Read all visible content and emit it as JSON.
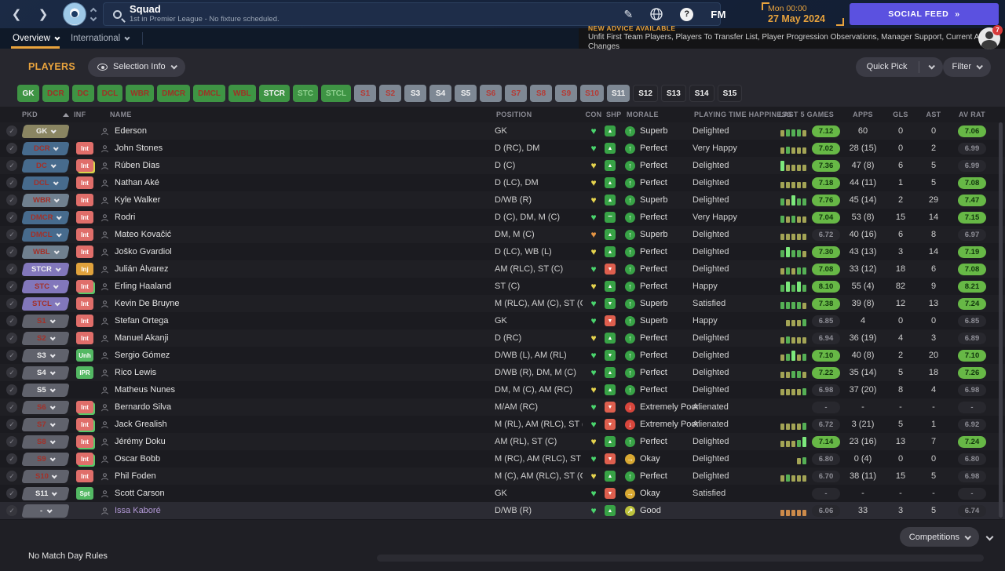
{
  "topbar": {
    "title": "Squad",
    "subtitle": "1st in Premier League - No fixture scheduled.",
    "fm_logo": "FM",
    "date_line1": "Mon 00:00",
    "date_line2": "27 May 2024",
    "social_feed_label": "SOCIAL FEED",
    "social_feed_arrow": "»"
  },
  "tabs": {
    "overview": "Overview",
    "international": "International"
  },
  "advice": {
    "heading": "NEW ADVICE AVAILABLE",
    "items": "Unfit First Team Players, Players To Transfer List, Player Progression Observations, Manager Support, Current Ability Changes",
    "badge_count": "7"
  },
  "players_toolbar": {
    "title": "PLAYERS",
    "selection_info": "Selection Info",
    "quick_pick": "Quick Pick",
    "filter": "Filter"
  },
  "position_buttons": [
    {
      "label": "GK",
      "bg": "green",
      "text": "white"
    },
    {
      "label": "DCR",
      "bg": "green",
      "text": "red"
    },
    {
      "label": "DC",
      "bg": "green",
      "text": "red"
    },
    {
      "label": "DCL",
      "bg": "green",
      "text": "red"
    },
    {
      "label": "WBR",
      "bg": "green",
      "text": "red"
    },
    {
      "label": "DMCR",
      "bg": "green",
      "text": "red"
    },
    {
      "label": "DMCL",
      "bg": "green",
      "text": "red"
    },
    {
      "label": "WBL",
      "bg": "green",
      "text": "red"
    },
    {
      "label": "STCR",
      "bg": "green",
      "text": "white"
    },
    {
      "label": "STC",
      "bg": "green",
      "text": "ltgreen"
    },
    {
      "label": "STCL",
      "bg": "green",
      "text": "ltgreen"
    },
    {
      "label": "S1",
      "bg": "grey",
      "text": "redg"
    },
    {
      "label": "S2",
      "bg": "grey",
      "text": "redg"
    },
    {
      "label": "S3",
      "bg": "grey",
      "text": "white"
    },
    {
      "label": "S4",
      "bg": "grey",
      "text": "white"
    },
    {
      "label": "S5",
      "bg": "grey",
      "text": "white"
    },
    {
      "label": "S6",
      "bg": "grey",
      "text": "redg"
    },
    {
      "label": "S7",
      "bg": "grey",
      "text": "redg"
    },
    {
      "label": "S8",
      "bg": "grey",
      "text": "redg"
    },
    {
      "label": "S9",
      "bg": "grey",
      "text": "redg"
    },
    {
      "label": "S10",
      "bg": "grey",
      "text": "redg"
    },
    {
      "label": "S11",
      "bg": "grey",
      "text": "white"
    },
    {
      "label": "S12",
      "bg": "dark",
      "text": "white"
    },
    {
      "label": "S13",
      "bg": "dark",
      "text": "white"
    },
    {
      "label": "S14",
      "bg": "dark",
      "text": "white"
    },
    {
      "label": "S15",
      "bg": "dark",
      "text": "white"
    }
  ],
  "colors": {
    "accent_orange": "#e8a33d",
    "social_purple": "#5b51e0",
    "rating_green": "#67b846",
    "heart": {
      "green": "#4ad66e",
      "yellow": "#e6d44e",
      "orange": "#e69544"
    }
  },
  "table": {
    "headers": {
      "pkd": "PKD",
      "inf": "INF",
      "name": "NAME",
      "position": "POSITION",
      "con": "CON",
      "shp": "SHP",
      "morale": "MORALE",
      "playing": "PLAYING TIME HAPPINESS",
      "last5": "LAST 5 GAMES",
      "apps": "APPS",
      "gls": "GLS",
      "ast": "AST",
      "avrat": "AV RAT"
    },
    "rows": [
      {
        "pkd": "GK",
        "pkd_color": "khaki",
        "pkd_text": "white",
        "inf": null,
        "name": "Ederson",
        "position": "GK",
        "con": "green",
        "shp": "green-up",
        "morale_icon": "green-up",
        "morale": "Superb",
        "playing": "Delighted",
        "last5": [
          "o",
          "g",
          "g",
          "g",
          "o"
        ],
        "rating": "7.12",
        "rating_badge": true,
        "apps": "60",
        "gls": "0",
        "ast": "0",
        "avrat": "7.06",
        "avrat_badge": true
      },
      {
        "pkd": "DCR",
        "pkd_color": "blue",
        "pkd_text": "red",
        "inf": "Int",
        "inf_color": "red",
        "name": "John Stones",
        "position": "D (RC), DM",
        "con": "green",
        "shp": "green-up",
        "morale_icon": "green-up",
        "morale": "Perfect",
        "playing": "Very Happy",
        "last5": [
          "o",
          "g",
          "o",
          "o",
          "o"
        ],
        "rating": "7.02",
        "rating_badge": true,
        "apps": "28 (15)",
        "gls": "0",
        "ast": "2",
        "avrat": "6.99",
        "avrat_badge": false
      },
      {
        "pkd": "DC",
        "pkd_color": "blue",
        "pkd_text": "red",
        "inf": "Int",
        "inf_color": "red",
        "inf_stack": "#d8d44a",
        "name": "Rúben Dias",
        "position": "D (C)",
        "con": "yellow",
        "shp": "green-up",
        "morale_icon": "green-up",
        "morale": "Perfect",
        "playing": "Delighted",
        "last5": [
          "b",
          "o",
          "o",
          "o",
          "o"
        ],
        "rating": "7.36",
        "rating_badge": true,
        "apps": "47 (8)",
        "gls": "6",
        "ast": "5",
        "avrat": "6.99",
        "avrat_badge": false
      },
      {
        "pkd": "DCL",
        "pkd_color": "blue",
        "pkd_text": "red",
        "inf": "Int",
        "inf_color": "red",
        "name": "Nathan Aké",
        "position": "D (LC), DM",
        "con": "yellow",
        "shp": "green-up",
        "morale_icon": "green-up",
        "morale": "Perfect",
        "playing": "Delighted",
        "last5": [
          "o",
          "o",
          "o",
          "o",
          "o"
        ],
        "rating": "7.18",
        "rating_badge": true,
        "apps": "44 (11)",
        "gls": "1",
        "ast": "5",
        "avrat": "7.08",
        "avrat_badge": true
      },
      {
        "pkd": "WBR",
        "pkd_color": "bluegrey",
        "pkd_text": "red",
        "inf": "Int",
        "inf_color": "red",
        "name": "Kyle Walker",
        "position": "D/WB (R)",
        "con": "yellow",
        "shp": "green-up",
        "morale_icon": "green-up",
        "morale": "Superb",
        "playing": "Delighted",
        "last5": [
          "g",
          "o",
          "b",
          "g",
          "g"
        ],
        "rating": "7.76",
        "rating_badge": true,
        "apps": "45 (14)",
        "gls": "2",
        "ast": "29",
        "avrat": "7.47",
        "avrat_badge": true
      },
      {
        "pkd": "DMCR",
        "pkd_color": "blue",
        "pkd_text": "red",
        "inf": "Int",
        "inf_color": "red",
        "name": "Rodri",
        "position": "D (C), DM, M (C)",
        "con": "green",
        "shp": "green-minus",
        "morale_icon": "green-up",
        "morale": "Perfect",
        "playing": "Very Happy",
        "last5": [
          "g",
          "o",
          "g",
          "o",
          "o"
        ],
        "rating": "7.04",
        "rating_badge": true,
        "apps": "53 (8)",
        "gls": "15",
        "ast": "14",
        "avrat": "7.15",
        "avrat_badge": true
      },
      {
        "pkd": "DMCL",
        "pkd_color": "blue",
        "pkd_text": "red",
        "inf": "Int",
        "inf_color": "red",
        "name": "Mateo Kovačić",
        "position": "DM, M (C)",
        "con": "orange",
        "shp": "green-up",
        "morale_icon": "green-up",
        "morale": "Superb",
        "playing": "Delighted",
        "last5": [
          "o",
          "o",
          "o",
          "o",
          "o"
        ],
        "rating": "6.72",
        "rating_badge": false,
        "apps": "40 (16)",
        "gls": "6",
        "ast": "8",
        "avrat": "6.97",
        "avrat_badge": false
      },
      {
        "pkd": "WBL",
        "pkd_color": "bluegrey",
        "pkd_text": "red",
        "inf": "Int",
        "inf_color": "red",
        "name": "Joško Gvardiol",
        "position": "D (LC), WB (L)",
        "con": "yellow",
        "shp": "green-up",
        "morale_icon": "green-up",
        "morale": "Perfect",
        "playing": "Delighted",
        "last5": [
          "g",
          "b",
          "g",
          "g",
          "o"
        ],
        "rating": "7.30",
        "rating_badge": true,
        "apps": "43 (13)",
        "gls": "3",
        "ast": "14",
        "avrat": "7.19",
        "avrat_badge": true
      },
      {
        "pkd": "STCR",
        "pkd_color": "purple",
        "pkd_text": "white",
        "inf": "Inj",
        "inf_color": "amber",
        "name": "Julián Álvarez",
        "position": "AM (RLC), ST (C)",
        "con": "green",
        "shp": "red-down",
        "morale_icon": "green-up",
        "morale": "Perfect",
        "playing": "Delighted",
        "last5": [
          "o",
          "g",
          "o",
          "g",
          "g"
        ],
        "rating": "7.08",
        "rating_badge": true,
        "apps": "33 (12)",
        "gls": "18",
        "ast": "6",
        "avrat": "7.08",
        "avrat_badge": true
      },
      {
        "pkd": "STC",
        "pkd_color": "purple",
        "pkd_text": "red",
        "inf": "Int",
        "inf_color": "red",
        "inf_stack": "#58c868",
        "name": "Erling Haaland",
        "position": "ST (C)",
        "con": "yellow",
        "shp": "green-up",
        "morale_icon": "green-up",
        "morale": "Perfect",
        "playing": "Happy",
        "last5": [
          "g",
          "b",
          "g",
          "b",
          "g"
        ],
        "rating": "8.10",
        "rating_badge": true,
        "apps": "55 (4)",
        "gls": "82",
        "ast": "9",
        "avrat": "8.21",
        "avrat_badge": true
      },
      {
        "pkd": "STCL",
        "pkd_color": "purple",
        "pkd_text": "red",
        "inf": "Int",
        "inf_color": "red",
        "name": "Kevin De Bruyne",
        "position": "M (RLC), AM (C), ST (C)",
        "con": "green",
        "shp": "green-down",
        "morale_icon": "green-up",
        "morale": "Superb",
        "playing": "Satisfied",
        "last5": [
          "g",
          "g",
          "g",
          "g",
          "o"
        ],
        "rating": "7.38",
        "rating_badge": true,
        "apps": "39 (8)",
        "gls": "12",
        "ast": "13",
        "avrat": "7.24",
        "avrat_badge": true
      },
      {
        "pkd": "S1",
        "pkd_color": "grey",
        "pkd_text": "red",
        "inf": "Int",
        "inf_color": "red",
        "name": "Stefan Ortega",
        "position": "GK",
        "con": "green",
        "shp": "red-down",
        "morale_icon": "green-up",
        "morale": "Superb",
        "playing": "Happy",
        "last5": [
          "o",
          "o",
          "o",
          "g"
        ],
        "rating": "6.85",
        "rating_badge": false,
        "apps": "4",
        "gls": "0",
        "ast": "0",
        "avrat": "6.85",
        "avrat_badge": false
      },
      {
        "pkd": "S2",
        "pkd_color": "grey",
        "pkd_text": "red",
        "inf": "Int",
        "inf_color": "red",
        "name": "Manuel Akanji",
        "position": "D (RC)",
        "con": "yellow",
        "shp": "green-up",
        "morale_icon": "green-up",
        "morale": "Perfect",
        "playing": "Delighted",
        "last5": [
          "o",
          "g",
          "o",
          "o",
          "o"
        ],
        "rating": "6.94",
        "rating_badge": false,
        "apps": "36 (19)",
        "gls": "4",
        "ast": "3",
        "avrat": "6.89",
        "avrat_badge": false
      },
      {
        "pkd": "S3",
        "pkd_color": "grey",
        "pkd_text": "white",
        "inf": "Unh",
        "inf_color": "green",
        "name": "Sergio Gómez",
        "position": "D/WB (L), AM (RL)",
        "con": "green",
        "shp": "green-down",
        "morale_icon": "green-up",
        "morale": "Perfect",
        "playing": "Delighted",
        "last5": [
          "o",
          "g",
          "b",
          "o",
          "g"
        ],
        "rating": "7.10",
        "rating_badge": true,
        "apps": "40 (8)",
        "gls": "2",
        "ast": "20",
        "avrat": "7.10",
        "avrat_badge": true
      },
      {
        "pkd": "S4",
        "pkd_color": "grey",
        "pkd_text": "white",
        "inf": "IPR",
        "inf_color": "green",
        "name": "Rico Lewis",
        "position": "D/WB (R), DM, M (C)",
        "con": "green",
        "shp": "green-up",
        "morale_icon": "green-up",
        "morale": "Perfect",
        "playing": "Delighted",
        "last5": [
          "o",
          "o",
          "g",
          "g",
          "o"
        ],
        "rating": "7.22",
        "rating_badge": true,
        "apps": "35 (14)",
        "gls": "5",
        "ast": "18",
        "avrat": "7.26",
        "avrat_badge": true
      },
      {
        "pkd": "S5",
        "pkd_color": "grey",
        "pkd_text": "white",
        "inf": null,
        "name": "Matheus Nunes",
        "position": "DM, M (C), AM (RC)",
        "con": "yellow",
        "shp": "green-up",
        "morale_icon": "green-up",
        "morale": "Perfect",
        "playing": "Delighted",
        "last5": [
          "o",
          "o",
          "o",
          "o",
          "g"
        ],
        "rating": "6.98",
        "rating_badge": false,
        "apps": "37 (20)",
        "gls": "8",
        "ast": "4",
        "avrat": "6.98",
        "avrat_badge": false
      },
      {
        "pkd": "S6",
        "pkd_color": "grey",
        "pkd_text": "red",
        "inf": "Int",
        "inf_color": "red",
        "inf_stack": "#58c868",
        "name": "Bernardo Silva",
        "position": "M/AM (RC)",
        "con": "green",
        "shp": "red-down",
        "morale_icon": "red-down",
        "morale": "Extremely Poor",
        "playing": "Alienated",
        "last5": [],
        "rating": null,
        "rating_badge": false,
        "apps": "-",
        "gls": "-",
        "ast": "-",
        "avrat": null,
        "avrat_badge": false
      },
      {
        "pkd": "S7",
        "pkd_color": "grey",
        "pkd_text": "red",
        "inf": "Int",
        "inf_color": "red",
        "inf_stack": "#58c868",
        "name": "Jack Grealish",
        "position": "M (RL), AM (RLC), ST (...",
        "con": "green",
        "shp": "red-down",
        "morale_icon": "red-down",
        "morale": "Extremely Poor",
        "playing": "Alienated",
        "last5": [
          "o",
          "o",
          "o",
          "o",
          "g"
        ],
        "rating": "6.72",
        "rating_badge": false,
        "apps": "3 (21)",
        "gls": "5",
        "ast": "1",
        "avrat": "6.92",
        "avrat_badge": false
      },
      {
        "pkd": "S8",
        "pkd_color": "grey",
        "pkd_text": "red",
        "inf": "Int",
        "inf_color": "red",
        "inf_stack": "#58c868",
        "name": "Jérémy Doku",
        "position": "AM (RL), ST (C)",
        "con": "yellow",
        "shp": "green-up",
        "morale_icon": "green-up",
        "morale": "Perfect",
        "playing": "Delighted",
        "last5": [
          "o",
          "o",
          "o",
          "g",
          "b"
        ],
        "rating": "7.14",
        "rating_badge": true,
        "apps": "23 (16)",
        "gls": "13",
        "ast": "7",
        "avrat": "7.24",
        "avrat_badge": true
      },
      {
        "pkd": "S9",
        "pkd_color": "grey",
        "pkd_text": "red",
        "inf": "Int",
        "inf_color": "red",
        "inf_stack": "#58c868",
        "name": "Oscar Bobb",
        "position": "M (RC), AM (RLC), ST (...",
        "con": "green",
        "shp": "red-down",
        "morale_icon": "amber-right",
        "morale": "Okay",
        "playing": "Delighted",
        "last5": [
          "o",
          "g"
        ],
        "rating": "6.80",
        "rating_badge": false,
        "apps": "0 (4)",
        "gls": "0",
        "ast": "0",
        "avrat": "6.80",
        "avrat_badge": false
      },
      {
        "pkd": "S10",
        "pkd_color": "grey",
        "pkd_text": "red",
        "inf": "Int",
        "inf_color": "red",
        "name": "Phil Foden",
        "position": "M (C), AM (RLC), ST (C)",
        "con": "yellow",
        "shp": "green-up",
        "morale_icon": "green-up",
        "morale": "Perfect",
        "playing": "Delighted",
        "last5": [
          "o",
          "g",
          "o",
          "o",
          "o"
        ],
        "rating": "6.70",
        "rating_badge": false,
        "apps": "38 (11)",
        "gls": "15",
        "ast": "5",
        "avrat": "6.98",
        "avrat_badge": false
      },
      {
        "pkd": "S11",
        "pkd_color": "grey",
        "pkd_text": "white",
        "inf": "Spt",
        "inf_color": "green",
        "name": "Scott Carson",
        "position": "GK",
        "con": "green",
        "shp": "red-down",
        "morale_icon": "amber-right",
        "morale": "Okay",
        "playing": "Satisfied",
        "last5": [],
        "rating": null,
        "rating_badge": false,
        "apps": "-",
        "gls": "-",
        "ast": "-",
        "avrat": null,
        "avrat_badge": false
      },
      {
        "pkd": "-",
        "pkd_color": "grey",
        "pkd_text": "white",
        "inf": null,
        "name": "Issa Kaboré",
        "name_color": "#b49ad8",
        "highlight": true,
        "position": "D/WB (R)",
        "con": "green",
        "shp": "green-up",
        "morale_icon": "yellow-upright",
        "morale": "Good",
        "playing": "",
        "last5": [
          "or",
          "or",
          "or",
          "or",
          "or"
        ],
        "rating": "6.06",
        "rating_badge": false,
        "apps": "33",
        "gls": "3",
        "ast": "5",
        "avrat": "6.74",
        "avrat_badge": false
      }
    ]
  },
  "footer": {
    "competitions": "Competitions",
    "no_match_day_rules": "No Match Day Rules"
  }
}
